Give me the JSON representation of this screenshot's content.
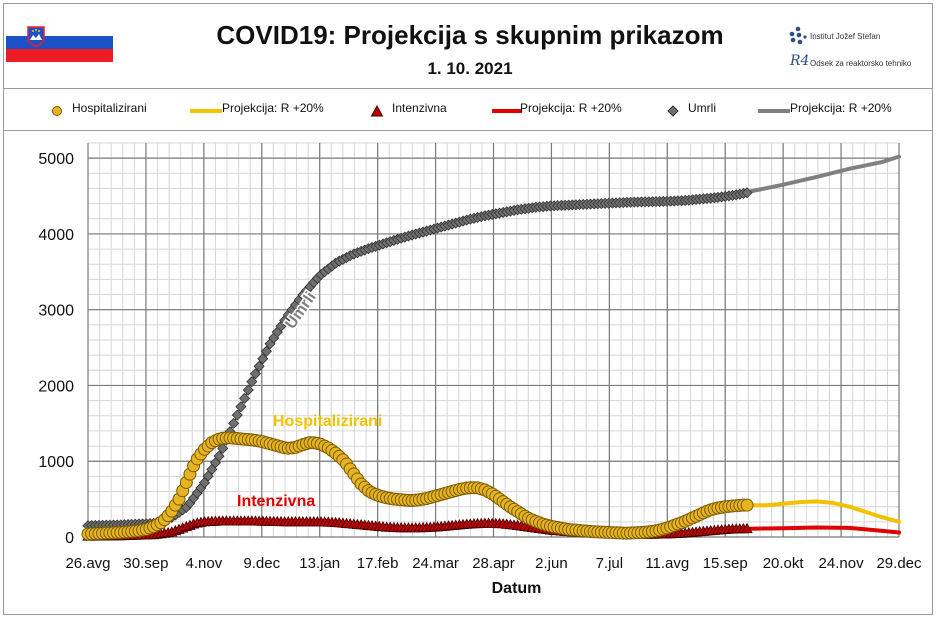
{
  "header": {
    "title": "COVID19: Projekcija s skupnim prikazom",
    "date": "1. 10. 2021",
    "institute": "Institut Jožef Stefan",
    "department": "Odsek za reaktorsko tehniko",
    "dept_logo": "R4"
  },
  "legend": [
    {
      "label": "Hospitalizirani",
      "marker": "circle",
      "color": "#f2c200"
    },
    {
      "label": "Projekcija: R +20%",
      "marker": "line",
      "color": "#f2c200"
    },
    {
      "label": "Intenzivna",
      "marker": "triangle",
      "color": "#c00000"
    },
    {
      "label": "Projekcija: R +20%",
      "marker": "line",
      "color": "#e00000"
    },
    {
      "label": "Umrli",
      "marker": "diamond",
      "color": "#555555"
    },
    {
      "label": "Projekcija: R +20%",
      "marker": "line",
      "color": "#808080"
    }
  ],
  "chart_data": {
    "type": "line",
    "xlabel": "Datum",
    "ylabel": "",
    "ylim": [
      0,
      5200
    ],
    "yticks": [
      0,
      1000,
      2000,
      3000,
      4000,
      5000
    ],
    "x_range_days": [
      0,
      400
    ],
    "x_ticks": [
      {
        "label": "26.avg",
        "day": 0
      },
      {
        "label": "30.sep",
        "day": 35
      },
      {
        "label": "4.nov",
        "day": 70
      },
      {
        "label": "9.dec",
        "day": 105
      },
      {
        "label": "13.jan",
        "day": 140
      },
      {
        "label": "17.feb",
        "day": 175
      },
      {
        "label": "24.mar",
        "day": 210
      },
      {
        "label": "28.apr",
        "day": 245
      },
      {
        "label": "2.jun",
        "day": 280
      },
      {
        "label": "7.jul",
        "day": 315
      },
      {
        "label": "11.avg",
        "day": 350
      },
      {
        "label": "15.sep",
        "day": 385
      },
      {
        "label": "20.okt",
        "day": 420
      },
      {
        "label": "24.nov",
        "day": 455
      },
      {
        "label": "29.dec",
        "day": 490
      }
    ],
    "annotations": [
      {
        "text": "Umrli",
        "color": "#7f7f7f"
      },
      {
        "text": "Hospitalizirani",
        "color": "#f2c200"
      },
      {
        "text": "Intenzivna",
        "color": "#e00000"
      }
    ],
    "series": [
      {
        "name": "Hospitalizirani",
        "kind": "observed",
        "marker": "circle",
        "fill": "#e6b422",
        "stroke": "#7a5a00",
        "x": [
          0,
          10,
          20,
          30,
          35,
          40,
          45,
          50,
          55,
          60,
          65,
          70,
          75,
          80,
          85,
          90,
          95,
          100,
          105,
          110,
          115,
          120,
          125,
          130,
          135,
          140,
          145,
          150,
          155,
          160,
          165,
          170,
          175,
          180,
          185,
          190,
          195,
          200,
          205,
          210,
          215,
          220,
          225,
          230,
          235,
          240,
          245,
          250,
          255,
          260,
          265,
          270,
          275,
          280,
          285,
          290,
          295,
          300,
          305,
          310,
          315,
          320,
          325,
          330,
          335,
          340,
          345,
          350,
          355,
          360,
          365,
          370,
          375,
          380,
          385,
          390,
          395,
          400
        ],
        "y": [
          40,
          50,
          60,
          80,
          100,
          140,
          200,
          320,
          500,
          750,
          1000,
          1150,
          1250,
          1300,
          1310,
          1300,
          1290,
          1280,
          1260,
          1230,
          1200,
          1170,
          1180,
          1220,
          1250,
          1230,
          1180,
          1100,
          1000,
          850,
          700,
          600,
          550,
          520,
          500,
          490,
          480,
          490,
          510,
          540,
          570,
          600,
          630,
          650,
          650,
          620,
          560,
          480,
          400,
          330,
          260,
          210,
          170,
          140,
          120,
          100,
          90,
          80,
          70,
          65,
          60,
          55,
          50,
          55,
          60,
          70,
          90,
          120,
          160,
          200,
          250,
          300,
          350,
          380,
          400,
          410,
          420,
          420
        ]
      },
      {
        "name": "Projekcija: R +20%",
        "kind": "projection",
        "color": "#f2c200",
        "x": [
          400,
          410,
          420,
          430,
          440,
          450,
          460,
          470,
          480,
          490
        ],
        "y": [
          420,
          420,
          440,
          460,
          470,
          450,
          400,
          330,
          260,
          200
        ]
      },
      {
        "name": "Intenzivna",
        "kind": "observed",
        "marker": "triangle",
        "fill": "#c00000",
        "stroke": "#3a0000",
        "x": [
          0,
          20,
          40,
          50,
          55,
          60,
          65,
          70,
          80,
          90,
          100,
          110,
          120,
          130,
          140,
          150,
          160,
          170,
          180,
          190,
          200,
          210,
          220,
          230,
          240,
          250,
          260,
          270,
          280,
          290,
          300,
          310,
          320,
          330,
          340,
          350,
          360,
          370,
          380,
          390,
          400
        ],
        "y": [
          10,
          15,
          30,
          60,
          100,
          140,
          180,
          200,
          210,
          210,
          210,
          205,
          200,
          200,
          200,
          190,
          170,
          150,
          130,
          120,
          120,
          130,
          150,
          170,
          180,
          175,
          150,
          120,
          90,
          70,
          55,
          45,
          40,
          35,
          35,
          40,
          50,
          70,
          90,
          105,
          110
        ]
      },
      {
        "name": "Projekcija: R +20%",
        "kind": "projection",
        "color": "#e00000",
        "x": [
          400,
          420,
          440,
          460,
          470,
          480,
          490
        ],
        "y": [
          110,
          115,
          125,
          120,
          100,
          80,
          60
        ]
      },
      {
        "name": "Umrli",
        "kind": "observed",
        "marker": "diamond",
        "fill": "#707070",
        "stroke": "#333333",
        "x": [
          0,
          20,
          40,
          50,
          60,
          70,
          80,
          90,
          100,
          110,
          120,
          130,
          140,
          150,
          160,
          170,
          180,
          190,
          200,
          210,
          220,
          230,
          240,
          250,
          260,
          270,
          280,
          290,
          300,
          310,
          320,
          330,
          340,
          350,
          360,
          370,
          380,
          390,
          400
        ],
        "y": [
          150,
          160,
          180,
          250,
          400,
          700,
          1100,
          1600,
          2100,
          2550,
          2900,
          3200,
          3450,
          3620,
          3730,
          3810,
          3880,
          3950,
          4010,
          4070,
          4130,
          4190,
          4240,
          4280,
          4320,
          4350,
          4370,
          4380,
          4390,
          4400,
          4410,
          4420,
          4425,
          4430,
          4440,
          4460,
          4480,
          4510,
          4550
        ]
      },
      {
        "name": "Projekcija: R +20%",
        "kind": "projection",
        "color": "#808080",
        "x": [
          400,
          420,
          440,
          460,
          480,
          490
        ],
        "y": [
          4560,
          4650,
          4750,
          4860,
          4950,
          5020
        ]
      }
    ]
  }
}
